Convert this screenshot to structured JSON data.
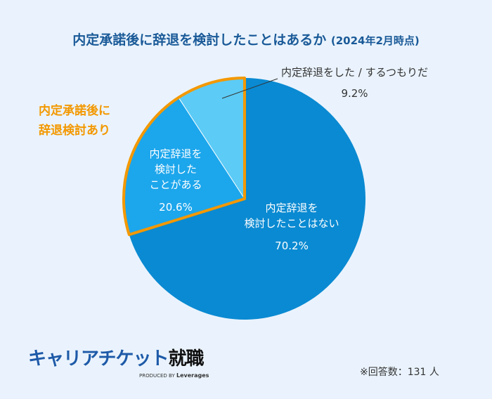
{
  "chart_data": {
    "type": "pie",
    "title": "内定承諾後に辞退を検討したことはあるか",
    "subtitle": "(2024年2月時点)",
    "slices": [
      {
        "label_lines": [
          "内定辞退を",
          "検討したことはない"
        ],
        "value": 70.2,
        "value_label": "70.2%",
        "color": "#0a8ad2"
      },
      {
        "label_lines": [
          "内定辞退を",
          "検討した",
          "ことがある"
        ],
        "value": 20.6,
        "value_label": "20.6%",
        "color": "#1ca6ec"
      },
      {
        "label_lines": [
          "内定辞退をした / するつもりだ"
        ],
        "value": 9.2,
        "value_label": "9.2%",
        "color": "#5ccbf6"
      }
    ],
    "highlight": {
      "label_lines": [
        "内定承諾後に",
        "辞退検討あり"
      ],
      "color": "#f39800"
    },
    "start": "top",
    "direction": "clockwise"
  },
  "footer": {
    "logo": "キャリアチケット就職",
    "logo_main": "キャリアチケット",
    "logo_accent": "就職",
    "produced_by": "PRODUCED BY",
    "company": "Leverages",
    "note": "※回答数：131 人"
  }
}
